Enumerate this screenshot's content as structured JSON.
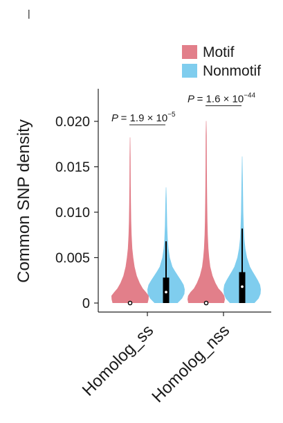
{
  "chart_data": {
    "type": "violin",
    "ylabel": "Common SNP density",
    "xlabel": "",
    "ylim": [
      0,
      0.0232
    ],
    "yticks": [
      {
        "value": 0,
        "label": "0"
      },
      {
        "value": 0.005,
        "label": "0.005"
      },
      {
        "value": 0.01,
        "label": "0.010"
      },
      {
        "value": 0.015,
        "label": "0.015"
      },
      {
        "value": 0.02,
        "label": "0.020"
      }
    ],
    "categories": [
      "Homolog_ss",
      "Homolog_nss"
    ],
    "legend_position": "top-right",
    "series": [
      {
        "name": "Motif",
        "color": "#e27f8a",
        "groups": [
          {
            "category": "Homolog_ss",
            "max": 0.0182,
            "median": 0.0,
            "q1": 0.0,
            "q3": 0.0,
            "profile": [
              [
                0,
                0.94
              ],
              [
                0.0004,
                0.99
              ],
              [
                0.0008,
                1.0
              ],
              [
                0.0012,
                0.85
              ],
              [
                0.0016,
                0.68
              ],
              [
                0.0022,
                0.52
              ],
              [
                0.003,
                0.36
              ],
              [
                0.004,
                0.24
              ],
              [
                0.005,
                0.17
              ],
              [
                0.006,
                0.12
              ],
              [
                0.0075,
                0.08
              ],
              [
                0.009,
                0.06
              ],
              [
                0.011,
                0.045
              ],
              [
                0.013,
                0.035
              ],
              [
                0.0145,
                0.03
              ],
              [
                0.016,
                0.025
              ],
              [
                0.0182,
                0.01
              ]
            ]
          },
          {
            "category": "Homolog_nss",
            "max": 0.02,
            "median": 0.0,
            "q1": 0.0,
            "q3": 0.0,
            "profile": [
              [
                0,
                0.96
              ],
              [
                0.0004,
                1.0
              ],
              [
                0.0008,
                0.97
              ],
              [
                0.0012,
                0.84
              ],
              [
                0.0016,
                0.66
              ],
              [
                0.0022,
                0.5
              ],
              [
                0.003,
                0.34
              ],
              [
                0.004,
                0.22
              ],
              [
                0.005,
                0.16
              ],
              [
                0.006,
                0.12
              ],
              [
                0.0075,
                0.085
              ],
              [
                0.009,
                0.065
              ],
              [
                0.011,
                0.05
              ],
              [
                0.013,
                0.04
              ],
              [
                0.015,
                0.035
              ],
              [
                0.017,
                0.03
              ],
              [
                0.0185,
                0.025
              ],
              [
                0.02,
                0.01
              ]
            ]
          }
        ]
      },
      {
        "name": "Nonmotif",
        "color": "#7fcdee",
        "groups": [
          {
            "category": "Homolog_ss",
            "max": 0.0127,
            "median": 0.0012,
            "q1": 0.0,
            "q3": 0.0028,
            "whisker_high": 0.0068,
            "profile": [
              [
                0,
                0.62
              ],
              [
                0.0005,
                0.86
              ],
              [
                0.001,
                0.98
              ],
              [
                0.0015,
                1.0
              ],
              [
                0.002,
                0.94
              ],
              [
                0.0025,
                0.8
              ],
              [
                0.003,
                0.64
              ],
              [
                0.0035,
                0.48
              ],
              [
                0.004,
                0.34
              ],
              [
                0.005,
                0.2
              ],
              [
                0.006,
                0.13
              ],
              [
                0.007,
                0.09
              ],
              [
                0.0085,
                0.06
              ],
              [
                0.01,
                0.045
              ],
              [
                0.0115,
                0.03
              ],
              [
                0.0127,
                0.01
              ]
            ]
          },
          {
            "category": "Homolog_nss",
            "max": 0.0161,
            "median": 0.0018,
            "q1": 0.0,
            "q3": 0.0034,
            "whisker_high": 0.0082,
            "profile": [
              [
                0,
                0.66
              ],
              [
                0.0005,
                0.88
              ],
              [
                0.001,
                0.98
              ],
              [
                0.0015,
                1.0
              ],
              [
                0.002,
                0.96
              ],
              [
                0.0025,
                0.84
              ],
              [
                0.003,
                0.7
              ],
              [
                0.0035,
                0.55
              ],
              [
                0.004,
                0.42
              ],
              [
                0.005,
                0.26
              ],
              [
                0.006,
                0.17
              ],
              [
                0.007,
                0.12
              ],
              [
                0.0085,
                0.08
              ],
              [
                0.01,
                0.06
              ],
              [
                0.012,
                0.045
              ],
              [
                0.014,
                0.03
              ],
              [
                0.0161,
                0.01
              ]
            ]
          }
        ]
      }
    ],
    "annotations": [
      {
        "category": "Homolog_ss",
        "p_prefix": "P",
        "eq": "=",
        "mantissa": "1.9",
        "times": "× 10",
        "exponent": "−5",
        "y": 0.02
      },
      {
        "category": "Homolog_nss",
        "p_prefix": "P",
        "eq": "=",
        "mantissa": "1.6",
        "times": "× 10",
        "exponent": "−44",
        "y": 0.0221
      }
    ]
  }
}
